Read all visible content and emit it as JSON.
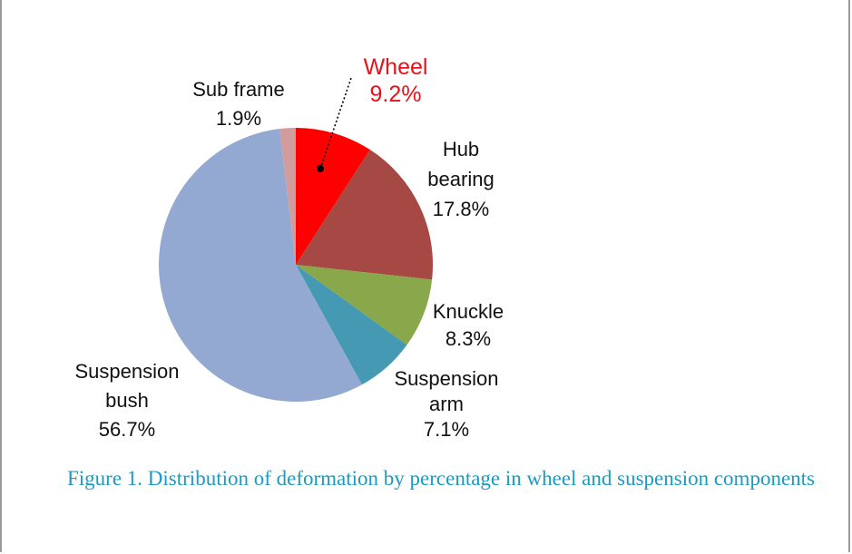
{
  "chart_data": {
    "type": "pie",
    "slices": [
      {
        "label_lines": [
          "Wheel"
        ],
        "value_text": "9.2%",
        "value": 9.2,
        "color": "#ff0000",
        "highlight": true
      },
      {
        "label_lines": [
          "Hub",
          "bearing"
        ],
        "value_text": "17.8%",
        "value": 17.8,
        "color": "#a64843"
      },
      {
        "label_lines": [
          "Knuckle"
        ],
        "value_text": "8.3%",
        "value": 8.3,
        "color": "#89a74b"
      },
      {
        "label_lines": [
          "Suspension",
          "arm"
        ],
        "value_text": "7.1%",
        "value": 7.1,
        "color": "#4599b2"
      },
      {
        "label_lines": [
          "Suspension",
          "bush"
        ],
        "value_text": "56.7%",
        "value": 56.7,
        "color": "#94a9d1"
      },
      {
        "label_lines": [
          "Sub frame"
        ],
        "value_text": "1.9%",
        "value": 1.9,
        "color": "#d39c9c"
      }
    ]
  },
  "caption": "Figure 1. Distribution of deformation by percentage in wheel and suspension components",
  "colors": {
    "caption": "#1a9bc4",
    "highlight": "#e8121a"
  }
}
